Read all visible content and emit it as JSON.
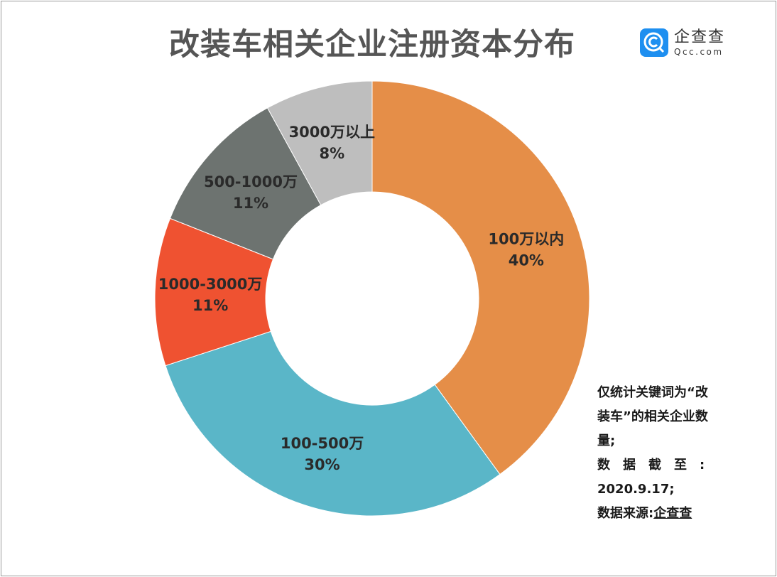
{
  "title": "改装车相关企业注册资本分布",
  "logo": {
    "cn": "企查查",
    "en": "Qcc.com"
  },
  "notes": {
    "lines": [
      "仅统计关键词为“改",
      "装车”的相关企业数",
      "量;",
      "数　据　截　至　:",
      "2020.9.17;"
    ],
    "source_label": "数据来源:",
    "source": "企查查"
  },
  "chart_data": {
    "type": "pie",
    "donut": true,
    "start": "top",
    "direction": "clockwise",
    "categories": [
      "100万以内",
      "100-500万",
      "1000-3000万",
      "500-1000万",
      "3000万以上"
    ],
    "values": [
      40,
      30,
      11,
      11,
      8
    ],
    "value_labels": [
      "40%",
      "30%",
      "11%",
      "11%",
      "8%"
    ],
    "colors": [
      "#E58E48",
      "#5AB6C8",
      "#EF5231",
      "#6D7370",
      "#BEBEBE"
    ]
  }
}
